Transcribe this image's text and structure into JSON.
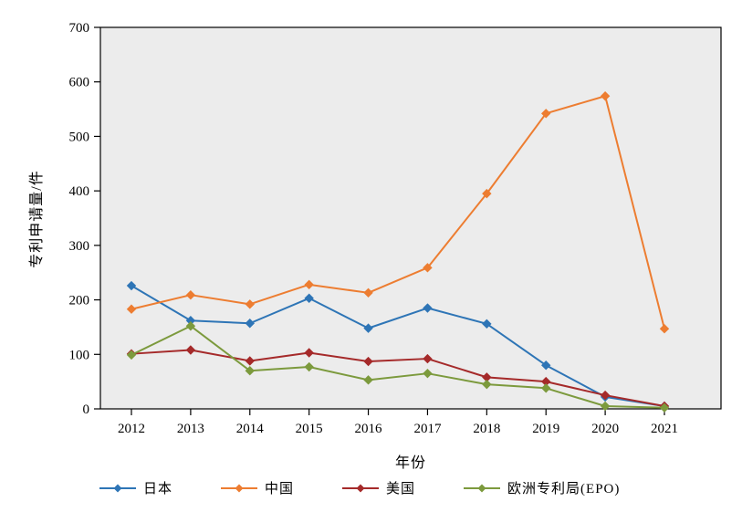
{
  "chart_data": {
    "type": "line",
    "title": "",
    "xlabel": "年份",
    "ylabel": "专利申请量/件",
    "x": [
      "2012",
      "2013",
      "2014",
      "2015",
      "2016",
      "2017",
      "2018",
      "2019",
      "2020",
      "2021"
    ],
    "ylim": [
      0,
      700
    ],
    "yticks": [
      0,
      100,
      200,
      300,
      400,
      500,
      600,
      700
    ],
    "grid": false,
    "legend_position": "bottom",
    "plot_background": "#ececec",
    "axis_color": "#000000",
    "series": [
      {
        "name": "日本",
        "color": "#2e75b6",
        "values": [
          226,
          162,
          157,
          203,
          148,
          185,
          156,
          80,
          22,
          5
        ]
      },
      {
        "name": "中国",
        "color": "#ed7d31",
        "values": [
          183,
          209,
          192,
          228,
          213,
          259,
          395,
          542,
          574,
          147
        ]
      },
      {
        "name": "美国",
        "color": "#a52a2a",
        "values": [
          101,
          108,
          88,
          103,
          87,
          92,
          58,
          50,
          25,
          5
        ]
      },
      {
        "name": "欧洲专利局(EPO)",
        "color": "#7c9a3d",
        "values": [
          99,
          152,
          70,
          77,
          53,
          65,
          45,
          38,
          5,
          2
        ]
      }
    ]
  }
}
